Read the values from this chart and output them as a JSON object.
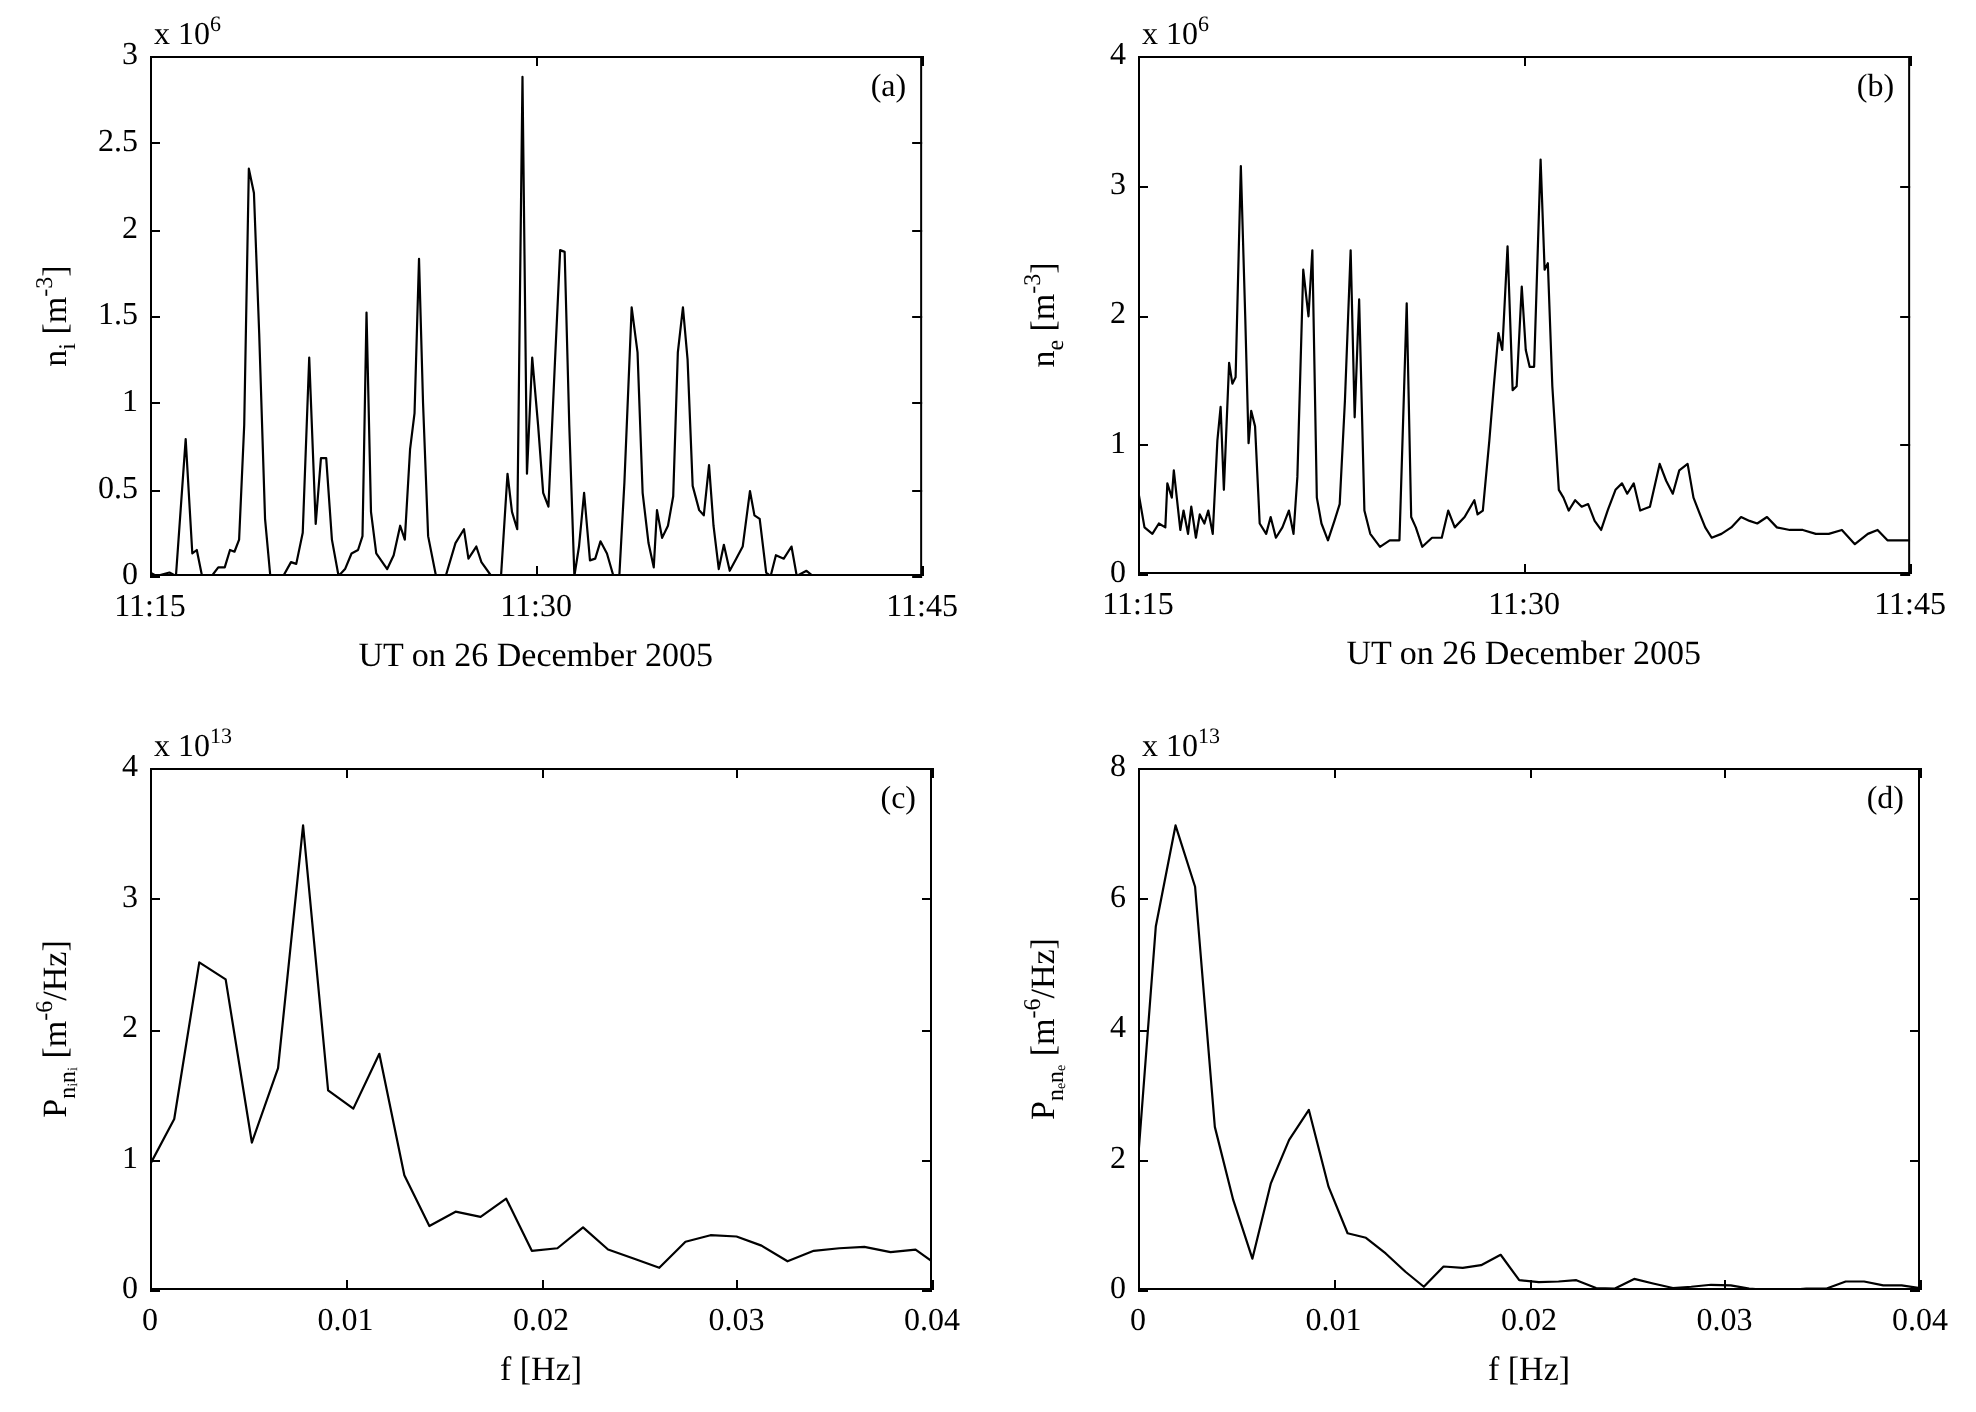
{
  "chart_data": [
    {
      "type": "line",
      "xlabel": "UT on 26 December 2005",
      "ylabel": "n$_{i}$ [m$^{-3}$]",
      "annotations": [
        "x 10$^{6}$",
        "(a)"
      ],
      "color": "#000000",
      "grid": false,
      "xlim": [
        11.25,
        11.75
      ],
      "xticks": [
        {
          "value": 11.25,
          "label": "11:15"
        },
        {
          "value": 11.5,
          "label": "11:30"
        },
        {
          "value": 11.75,
          "label": "11:45"
        }
      ],
      "ylim": [
        0,
        3
      ],
      "yticks": [
        0,
        0.5,
        1,
        1.5,
        2,
        2.5,
        3
      ],
      "x": [
        11.25,
        11.2542,
        11.2626,
        11.2668,
        11.2731,
        11.2774,
        11.2803,
        11.2837,
        11.29,
        11.2942,
        11.2984,
        11.3018,
        11.3047,
        11.3077,
        11.311,
        11.314,
        11.3173,
        11.3207,
        11.3245,
        11.3279,
        11.3363,
        11.3413,
        11.3447,
        11.3489,
        11.3531,
        11.3573,
        11.3607,
        11.3641,
        11.3678,
        11.3721,
        11.3763,
        11.3805,
        11.3847,
        11.3876,
        11.3902,
        11.3931,
        11.3965,
        11.4036,
        11.4078,
        11.412,
        11.415,
        11.4184,
        11.4213,
        11.4242,
        11.4268,
        11.4301,
        11.4352,
        11.4415,
        11.4478,
        11.4533,
        11.4562,
        11.4613,
        11.4646,
        11.471,
        11.4773,
        11.4815,
        11.4844,
        11.4878,
        11.4912,
        11.4941,
        11.4975,
        11.5013,
        11.5046,
        11.508,
        11.5122,
        11.5156,
        11.5185,
        11.5215,
        11.5248,
        11.5278,
        11.5311,
        11.5349,
        11.5383,
        11.5417,
        11.5459,
        11.5501,
        11.5539,
        11.5572,
        11.5619,
        11.5657,
        11.569,
        11.5728,
        11.5762,
        11.5783,
        11.5816,
        11.5854,
        11.5888,
        11.5918,
        11.5951,
        11.5981,
        11.6014,
        11.6056,
        11.6086,
        11.612,
        11.6149,
        11.6183,
        11.6216,
        11.6254,
        11.6296,
        11.6338,
        11.6385,
        11.6414,
        11.6448,
        11.649,
        11.6519,
        11.6553,
        11.6604,
        11.6654,
        11.6688,
        11.6751,
        11.6793
      ],
      "values": [
        0.02,
        0,
        0.02,
        0,
        0.79,
        0.13,
        0.15,
        0,
        0,
        0.05,
        0.05,
        0.15,
        0.14,
        0.21,
        0.87,
        2.35,
        2.21,
        1.4,
        0.33,
        0,
        0,
        0.08,
        0.07,
        0.25,
        1.26,
        0.3,
        0.68,
        0.68,
        0.21,
        0,
        0.04,
        0.13,
        0.15,
        0.23,
        1.52,
        0.37,
        0.13,
        0.04,
        0.12,
        0.29,
        0.21,
        0.73,
        0.94,
        1.83,
        1,
        0.23,
        0,
        0,
        0.19,
        0.27,
        0.1,
        0.17,
        0.08,
        0,
        0,
        0.59,
        0.37,
        0.27,
        2.88,
        0.59,
        1.26,
        0.87,
        0.48,
        0.4,
        1.23,
        1.88,
        1.87,
        0.87,
        0,
        0.17,
        0.48,
        0.09,
        0.1,
        0.2,
        0.13,
        0,
        0,
        0.54,
        1.55,
        1.29,
        0.48,
        0.19,
        0.05,
        0.38,
        0.22,
        0.29,
        0.46,
        1.29,
        1.55,
        1.25,
        0.52,
        0.38,
        0.35,
        0.64,
        0.29,
        0.04,
        0.18,
        0.03,
        0.1,
        0.17,
        0.49,
        0.35,
        0.33,
        0.02,
        0,
        0.12,
        0.1,
        0.17,
        0,
        0.03,
        0
      ]
    },
    {
      "type": "line",
      "xlabel": "UT on 26 December 2005",
      "ylabel": "n$_{e}$ [m$^{-3}$]",
      "annotations": [
        "x 10$^{6}$",
        "(b)"
      ],
      "color": "#000000",
      "grid": false,
      "xlim": [
        11.25,
        11.75
      ],
      "xticks": [
        {
          "value": 11.25,
          "label": "11:15"
        },
        {
          "value": 11.5,
          "label": "11:30"
        },
        {
          "value": 11.75,
          "label": "11:45"
        }
      ],
      "ylim": [
        0,
        4
      ],
      "yticks": [
        0,
        1,
        2,
        3,
        4
      ],
      "x": [
        11.25,
        11.2542,
        11.2593,
        11.2635,
        11.2677,
        11.269,
        11.2719,
        11.2732,
        11.2753,
        11.2774,
        11.2795,
        11.2824,
        11.2845,
        11.2875,
        11.29,
        11.293,
        11.2955,
        11.2984,
        11.3014,
        11.3035,
        11.3056,
        11.309,
        11.3111,
        11.3132,
        11.3166,
        11.3195,
        11.3216,
        11.3233,
        11.3258,
        11.3288,
        11.333,
        11.3359,
        11.3393,
        11.3435,
        11.3477,
        11.3507,
        11.3532,
        11.357,
        11.3604,
        11.3629,
        11.3658,
        11.3688,
        11.373,
        11.3772,
        11.3806,
        11.384,
        11.3877,
        11.3903,
        11.3932,
        11.3966,
        11.4004,
        11.4067,
        11.413,
        11.4193,
        11.424,
        11.4269,
        11.4299,
        11.4341,
        11.4404,
        11.4467,
        11.4509,
        11.4551,
        11.4615,
        11.4678,
        11.4699,
        11.4733,
        11.4775,
        11.4804,
        11.4834,
        11.4859,
        11.4893,
        11.4926,
        11.4952,
        11.4985,
        11.5011,
        11.5036,
        11.5065,
        11.5107,
        11.5133,
        11.5154,
        11.5183,
        11.5225,
        11.5255,
        11.5289,
        11.5331,
        11.5373,
        11.5415,
        11.5457,
        11.5499,
        11.5541,
        11.5592,
        11.5634,
        11.5668,
        11.571,
        11.5752,
        11.5815,
        11.5878,
        11.592,
        11.5963,
        11.6005,
        11.6059,
        11.6097,
        11.6139,
        11.6173,
        11.6215,
        11.6278,
        11.6342,
        11.6405,
        11.646,
        11.651,
        11.6573,
        11.6637,
        11.6721,
        11.6805,
        11.6889,
        11.6973,
        11.7058,
        11.7142,
        11.7226,
        11.7289,
        11.7353,
        11.7416,
        11.75
      ],
      "values": [
        0.65,
        0.36,
        0.31,
        0.39,
        0.36,
        0.7,
        0.59,
        0.8,
        0.57,
        0.34,
        0.49,
        0.31,
        0.52,
        0.28,
        0.46,
        0.39,
        0.49,
        0.31,
        1.03,
        1.29,
        0.65,
        1.63,
        1.47,
        1.52,
        3.15,
        1.96,
        1.01,
        1.26,
        1.14,
        0.39,
        0.31,
        0.44,
        0.28,
        0.36,
        0.49,
        0.31,
        0.75,
        2.35,
        1.99,
        2.5,
        0.59,
        0.39,
        0.26,
        0.41,
        0.54,
        1.34,
        2.5,
        1.21,
        2.12,
        0.49,
        0.31,
        0.21,
        0.26,
        0.26,
        2.09,
        0.44,
        0.36,
        0.21,
        0.28,
        0.28,
        0.49,
        0.36,
        0.44,
        0.57,
        0.46,
        0.49,
        1.03,
        1.45,
        1.86,
        1.73,
        2.53,
        1.42,
        1.45,
        2.22,
        1.73,
        1.6,
        1.6,
        3.2,
        2.35,
        2.4,
        1.45,
        0.65,
        0.59,
        0.49,
        0.57,
        0.52,
        0.54,
        0.41,
        0.34,
        0.49,
        0.65,
        0.7,
        0.62,
        0.7,
        0.49,
        0.52,
        0.85,
        0.72,
        0.62,
        0.8,
        0.85,
        0.59,
        0.46,
        0.36,
        0.28,
        0.31,
        0.36,
        0.44,
        0.41,
        0.39,
        0.44,
        0.36,
        0.34,
        0.34,
        0.31,
        0.31,
        0.34,
        0.23,
        0.31,
        0.34,
        0.26,
        0.26,
        0.26
      ]
    },
    {
      "type": "line",
      "xlabel": "f [Hz]",
      "ylabel": "P$_{nᵢnᵢ}$ [m$^{-6}$/Hz]",
      "annotations": [
        "x 10$^{13}$",
        "(c)"
      ],
      "color": "#000000",
      "grid": false,
      "xlim": [
        0,
        0.04
      ],
      "xticks": [
        0,
        0.01,
        0.02,
        0.03,
        0.04
      ],
      "ylim": [
        0,
        4
      ],
      "yticks": [
        0,
        1,
        2,
        3,
        4
      ],
      "x": [
        0,
        0.00124,
        0.00252,
        0.00387,
        0.00521,
        0.00655,
        0.00783,
        0.00911,
        0.0104,
        0.01173,
        0.01301,
        0.01429,
        0.01563,
        0.01691,
        0.01822,
        0.01953,
        0.02084,
        0.02215,
        0.02343,
        0.02477,
        0.02605,
        0.02739,
        0.02867,
        0.03,
        0.03128,
        0.03261,
        0.03395,
        0.03526,
        0.03654,
        0.03788,
        0.03916,
        0.04
      ],
      "values": [
        0.96,
        1.31,
        2.51,
        2.38,
        1.13,
        1.7,
        3.56,
        1.53,
        1.39,
        1.81,
        0.88,
        0.49,
        0.6,
        0.56,
        0.7,
        0.3,
        0.32,
        0.48,
        0.31,
        0.24,
        0.17,
        0.37,
        0.42,
        0.41,
        0.34,
        0.22,
        0.3,
        0.32,
        0.33,
        0.29,
        0.31,
        0.22
      ]
    },
    {
      "type": "line",
      "xlabel": "f [Hz]",
      "ylabel": "P$_{nₑnₑ}$ [m$^{-6}$/Hz]",
      "annotations": [
        "x 10$^{13}$",
        "(d)"
      ],
      "color": "#000000",
      "grid": false,
      "xlim": [
        0,
        0.04
      ],
      "xticks": [
        0,
        0.01,
        0.02,
        0.03,
        0.04
      ],
      "ylim": [
        0,
        8
      ],
      "yticks": [
        0,
        2,
        4,
        6,
        8
      ],
      "x": [
        0,
        0.00091,
        0.00192,
        0.00292,
        0.00393,
        0.00487,
        0.00585,
        0.00679,
        0.00773,
        0.00874,
        0.00975,
        0.01072,
        0.01166,
        0.01267,
        0.01368,
        0.01462,
        0.01563,
        0.01661,
        0.01755,
        0.01855,
        0.0195,
        0.0205,
        0.02151,
        0.02242,
        0.02343,
        0.02437,
        0.02538,
        0.02635,
        0.02736,
        0.0283,
        0.02931,
        0.03032,
        0.03126,
        0.03227,
        0.03324,
        0.03418,
        0.03519,
        0.0362,
        0.03714,
        0.03812,
        0.03906,
        0.04
      ],
      "values": [
        1.99,
        5.57,
        7.12,
        6.18,
        2.5,
        1.38,
        0.48,
        1.63,
        2.3,
        2.76,
        1.58,
        0.87,
        0.8,
        0.56,
        0.28,
        0.05,
        0.36,
        0.34,
        0.38,
        0.54,
        0.15,
        0.12,
        0.13,
        0.15,
        0.03,
        0.02,
        0.17,
        0.1,
        0.03,
        0.05,
        0.08,
        0.07,
        0.02,
        0,
        0,
        0.02,
        0.02,
        0.13,
        0.13,
        0.07,
        0.07,
        0.03
      ]
    }
  ]
}
